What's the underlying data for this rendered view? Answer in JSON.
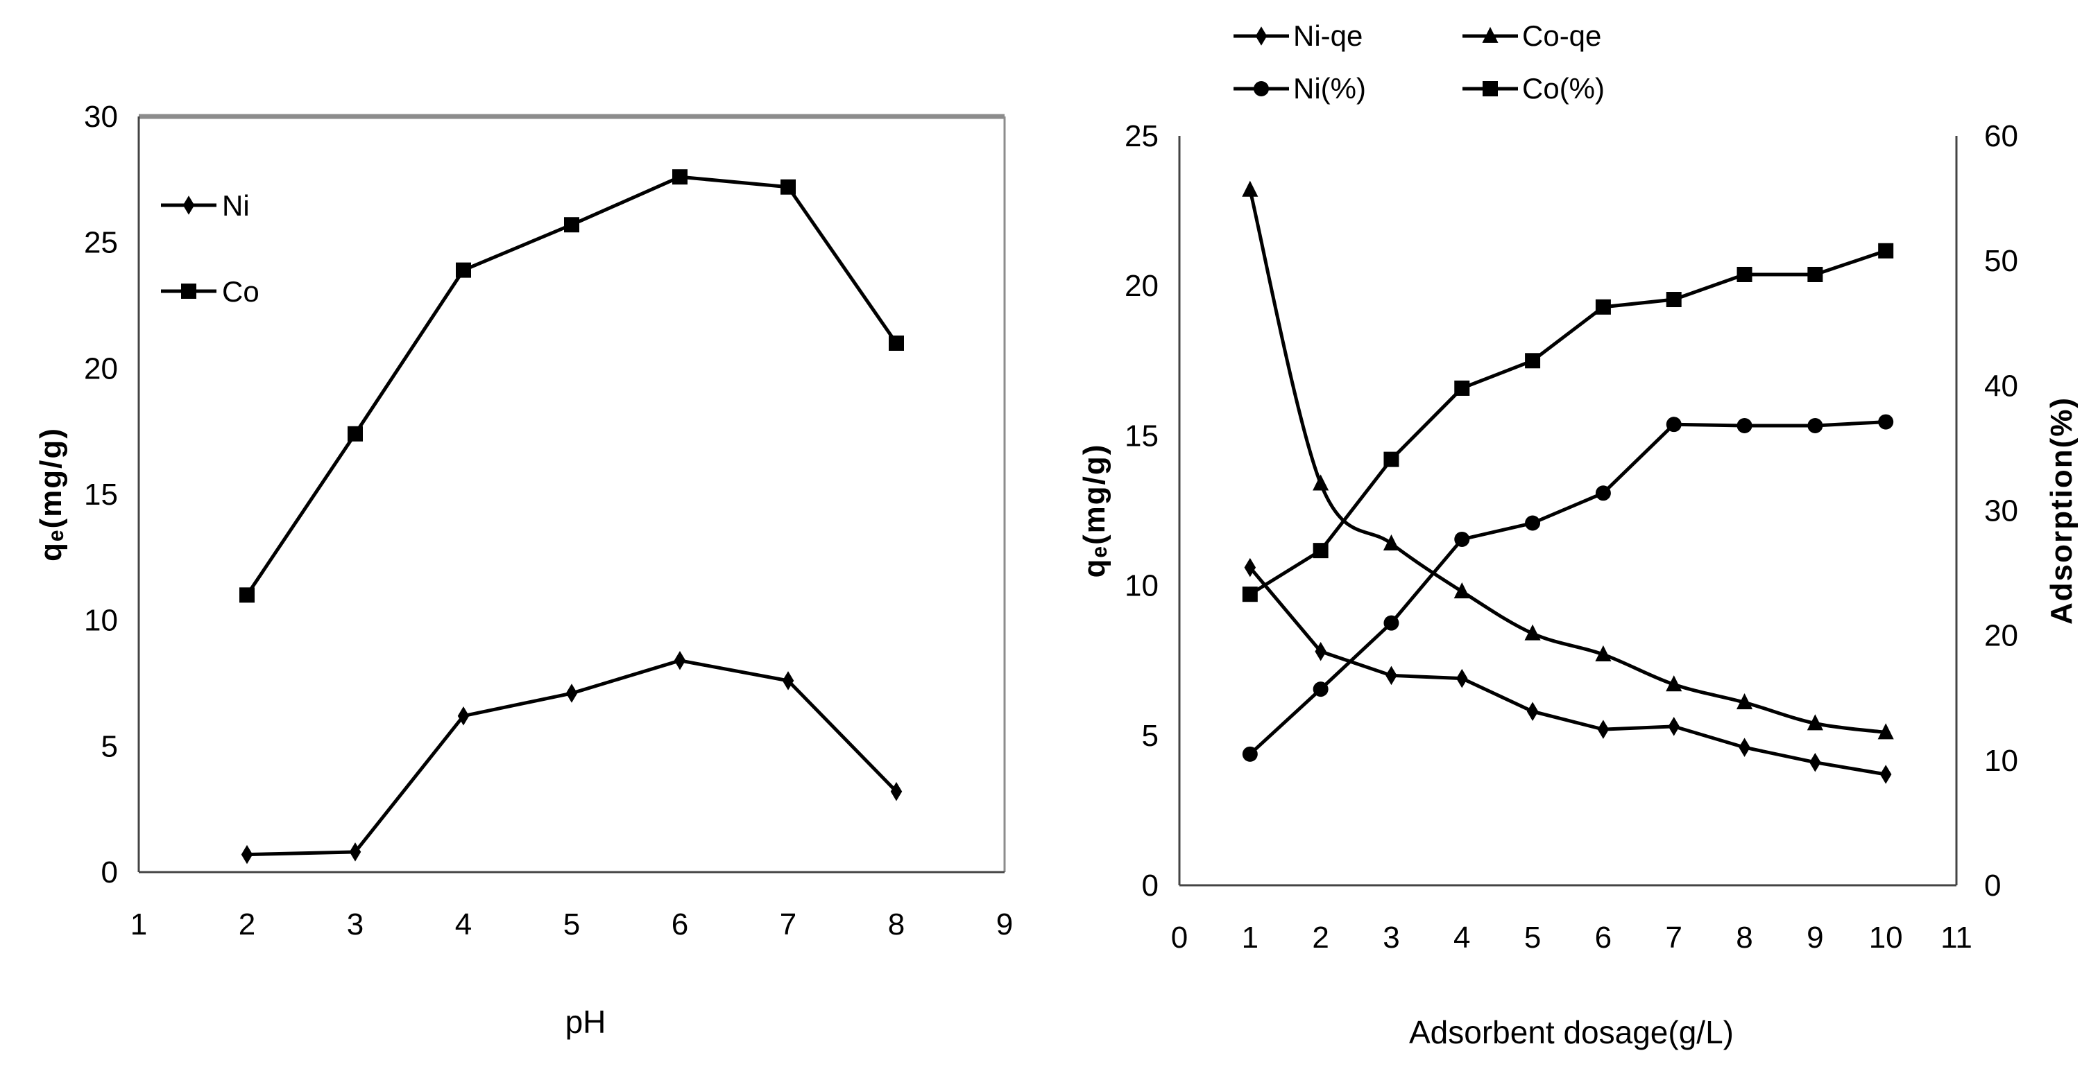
{
  "chart_data": [
    {
      "type": "line",
      "title": "",
      "xlabel": "pH",
      "ylabel": "qₑ(mg/g)",
      "xlim": [
        1,
        9
      ],
      "ylim": [
        0,
        30
      ],
      "xticks": [
        "1",
        "2",
        "3",
        "4",
        "5",
        "6",
        "7",
        "8",
        "9"
      ],
      "yticks": [
        "0",
        "5",
        "10",
        "15",
        "20",
        "25",
        "30"
      ],
      "grid": false,
      "legend_position": "top-left",
      "x": [
        2,
        3,
        4,
        5,
        6,
        7,
        8
      ],
      "series": [
        {
          "name": "Ni",
          "marker": "diamond",
          "axis": "left",
          "values": [
            0.7,
            0.8,
            6.2,
            7.1,
            8.4,
            7.6,
            3.2
          ]
        },
        {
          "name": "Co",
          "marker": "square",
          "axis": "left",
          "values": [
            11.0,
            17.4,
            23.9,
            25.7,
            27.6,
            27.2,
            21.0
          ]
        }
      ]
    },
    {
      "type": "line",
      "title": "",
      "xlabel": "Adsorbent dosage(g/L)",
      "ylabel": "qₑ(mg/g)",
      "y2label": "Adsorption(%)",
      "xlim": [
        0,
        11
      ],
      "ylim": [
        0,
        25
      ],
      "y2lim": [
        0,
        60
      ],
      "xticks": [
        "0",
        "1",
        "2",
        "3",
        "4",
        "5",
        "6",
        "7",
        "8",
        "9",
        "10",
        "11"
      ],
      "yticks": [
        "0",
        "5",
        "10",
        "15",
        "20",
        "25"
      ],
      "y2ticks": [
        "0",
        "10",
        "20",
        "30",
        "40",
        "50",
        "60"
      ],
      "grid": false,
      "legend_position": "top",
      "x": [
        1,
        2,
        3,
        4,
        5,
        6,
        7,
        8,
        9,
        10
      ],
      "series": [
        {
          "name": "Ni-qe",
          "marker": "diamond",
          "axis": "left",
          "values": [
            10.6,
            7.8,
            7.0,
            6.9,
            5.8,
            5.2,
            5.3,
            4.6,
            4.1,
            3.7
          ]
        },
        {
          "name": "Co-qe",
          "marker": "triangle",
          "axis": "left",
          "values": [
            23.2,
            13.4,
            11.4,
            9.8,
            8.4,
            7.7,
            6.7,
            6.1,
            5.4,
            5.1
          ]
        },
        {
          "name": "Ni(%)",
          "marker": "circle",
          "axis": "right",
          "values": [
            10.5,
            15.7,
            21.0,
            27.7,
            29.0,
            31.4,
            36.9,
            36.8,
            36.8,
            37.1
          ]
        },
        {
          "name": "Co(%)",
          "marker": "square",
          "axis": "right",
          "values": [
            23.3,
            26.8,
            34.1,
            39.8,
            42.0,
            46.3,
            46.9,
            48.9,
            48.9,
            50.8
          ]
        }
      ]
    }
  ]
}
